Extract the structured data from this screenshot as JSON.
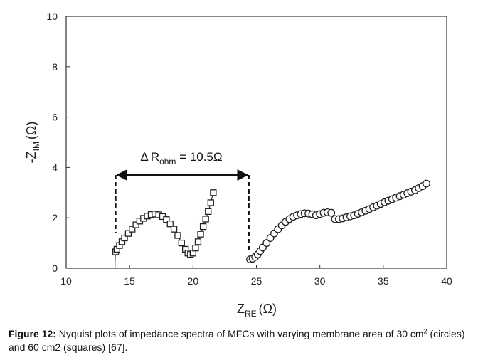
{
  "chart_data": {
    "type": "scatter",
    "title": "",
    "xlabel_main": "Z",
    "xlabel_sub": "RE",
    "xlabel_unit": "(Ω)",
    "ylabel_main": "-Z",
    "ylabel_sub": "IM",
    "ylabel_unit": "(Ω)",
    "xlim": [
      10,
      40
    ],
    "ylim": [
      0,
      10
    ],
    "xticks": [
      "10",
      "15",
      "20",
      "25",
      "30",
      "35",
      "40"
    ],
    "yticks": [
      "0",
      "2",
      "4",
      "6",
      "8",
      "10"
    ],
    "series": [
      {
        "name": "60 cm2 (squares)",
        "marker": "square",
        "x": [
          13.9,
          14.0,
          14.2,
          14.4,
          14.6,
          14.9,
          15.2,
          15.5,
          15.8,
          16.1,
          16.4,
          16.7,
          17.0,
          17.3,
          17.6,
          17.9,
          18.2,
          18.5,
          18.8,
          19.1,
          19.4,
          19.6,
          19.8,
          20.0,
          20.2,
          20.4,
          20.6,
          20.8,
          21.0,
          21.2,
          21.4,
          21.6
        ],
        "y": [
          0.65,
          0.75,
          0.9,
          1.05,
          1.2,
          1.38,
          1.55,
          1.72,
          1.87,
          1.98,
          2.07,
          2.13,
          2.15,
          2.12,
          2.05,
          1.93,
          1.76,
          1.55,
          1.3,
          1.0,
          0.75,
          0.6,
          0.55,
          0.6,
          0.8,
          1.05,
          1.35,
          1.65,
          1.95,
          2.25,
          2.6,
          3.0
        ]
      },
      {
        "name": "30 cm2 (circles)",
        "marker": "circle",
        "x": [
          24.5,
          24.7,
          24.9,
          25.1,
          25.3,
          25.5,
          25.8,
          26.1,
          26.4,
          26.7,
          27.0,
          27.3,
          27.6,
          27.9,
          28.2,
          28.5,
          28.8,
          29.1,
          29.4,
          29.7,
          30.0,
          30.3,
          30.6,
          30.9,
          31.2,
          31.5,
          31.8,
          32.1,
          32.4,
          32.7,
          33.0,
          33.3,
          33.6,
          33.9,
          34.2,
          34.5,
          34.8,
          35.1,
          35.4,
          35.7,
          36.0,
          36.3,
          36.6,
          36.9,
          37.2,
          37.5,
          37.8,
          38.1,
          38.4
        ],
        "y": [
          0.35,
          0.38,
          0.45,
          0.55,
          0.68,
          0.82,
          1.0,
          1.2,
          1.38,
          1.55,
          1.7,
          1.84,
          1.95,
          2.04,
          2.1,
          2.15,
          2.18,
          2.17,
          2.14,
          2.1,
          2.15,
          2.2,
          2.22,
          2.2,
          1.95,
          1.95,
          1.98,
          2.02,
          2.06,
          2.1,
          2.16,
          2.22,
          2.28,
          2.35,
          2.42,
          2.48,
          2.55,
          2.62,
          2.68,
          2.74,
          2.8,
          2.86,
          2.92,
          2.98,
          3.04,
          3.1,
          3.18,
          3.26,
          3.36
        ]
      }
    ],
    "annotation": {
      "delta": "Δ",
      "r_main": "R",
      "r_sub": "ohm",
      "value": " = 10.5Ω",
      "x_start": 13.9,
      "x_end": 24.4,
      "y_arrow": 3.7,
      "y_dash_bottom": 1.4
    },
    "grid": false
  },
  "caption": {
    "label": "Figure 12:",
    "text_part1": " Nyquist plots of impedance spectra of MFCs with varying membrane area of 30 cm",
    "superscript": "2",
    "text_part2": " (circles) and 60 cm2 (squares) [67]."
  }
}
